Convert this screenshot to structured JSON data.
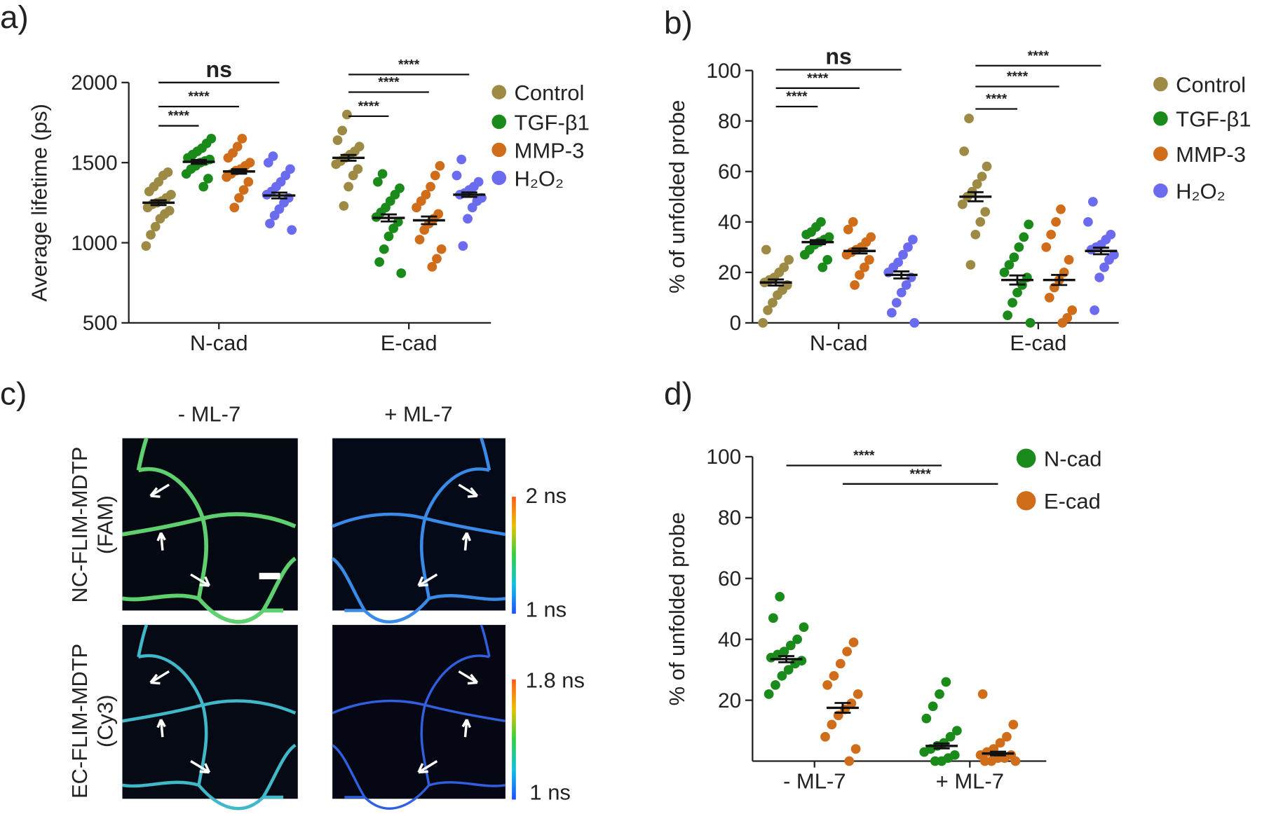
{
  "chart_data": [
    {
      "type": "strip",
      "panel_label": "a)",
      "ylabel": "Average lifetime (ps)",
      "categories": [
        "N-cad",
        "E-cad"
      ],
      "ylim": [
        500,
        2000
      ],
      "yticks": [
        500,
        1000,
        1500,
        2000
      ],
      "series": [
        {
          "name": "Control",
          "color": "#9c8a45",
          "values": [
            [
              980,
              1050,
              1100,
              1150,
              1180,
              1200,
              1220,
              1240,
              1250,
              1260,
              1280,
              1300,
              1320,
              1350,
              1380,
              1420,
              1440
            ],
            [
              1230,
              1350,
              1420,
              1460,
              1490,
              1510,
              1530,
              1550,
              1570,
              1600,
              1640,
              1700,
              1800
            ]
          ],
          "mean": [
            1250,
            1530
          ],
          "sem": [
            15,
            18
          ]
        },
        {
          "name": "TGF-β1",
          "color": "#1a8a1a",
          "values": [
            [
              1350,
              1400,
              1430,
              1460,
              1480,
              1500,
              1510,
              1520,
              1530,
              1550,
              1570,
              1590,
              1620,
              1650
            ],
            [
              810,
              880,
              960,
              1040,
              1090,
              1130,
              1160,
              1190,
              1220,
              1260,
              1300,
              1340,
              1380,
              1430
            ]
          ],
          "mean": [
            1505,
            1155
          ],
          "sem": [
            12,
            22
          ]
        },
        {
          "name": "MMP-3",
          "color": "#d06d1a",
          "values": [
            [
              1220,
              1280,
              1330,
              1380,
              1410,
              1430,
              1450,
              1460,
              1480,
              1500,
              1530,
              1560,
              1600,
              1650
            ],
            [
              850,
              900,
              960,
              1020,
              1080,
              1120,
              1150,
              1180,
              1220,
              1260,
              1300,
              1350,
              1420,
              1480
            ]
          ],
          "mean": [
            1445,
            1140
          ],
          "sem": [
            14,
            24
          ]
        },
        {
          "name": "H₂O₂",
          "color": "#6b6bf0",
          "values": [
            [
              1080,
              1120,
              1170,
              1210,
              1250,
              1280,
              1300,
              1320,
              1350,
              1380,
              1420,
              1460,
              1500,
              1540
            ],
            [
              980,
              1150,
              1220,
              1260,
              1280,
              1300,
              1310,
              1330,
              1350,
              1380,
              1420,
              1520
            ]
          ],
          "mean": [
            1295,
            1300
          ],
          "sem": [
            18,
            14
          ]
        }
      ],
      "significance": [
        {
          "label": "****",
          "from": [
            0,
            0
          ],
          "to": [
            0,
            1
          ]
        },
        {
          "label": "****",
          "from": [
            0,
            0
          ],
          "to": [
            0,
            2
          ]
        },
        {
          "label": "ns",
          "from": [
            0,
            0
          ],
          "to": [
            0,
            3
          ]
        },
        {
          "label": "****",
          "from": [
            1,
            0
          ],
          "to": [
            1,
            1
          ]
        },
        {
          "label": "****",
          "from": [
            1,
            0
          ],
          "to": [
            1,
            2
          ]
        },
        {
          "label": "****",
          "from": [
            1,
            0
          ],
          "to": [
            1,
            3
          ]
        }
      ]
    },
    {
      "type": "strip",
      "panel_label": "b)",
      "ylabel": "% of unfolded probe",
      "categories": [
        "N-cad",
        "E-cad"
      ],
      "ylim": [
        0,
        100
      ],
      "yticks": [
        0,
        20,
        40,
        60,
        80,
        100
      ],
      "series": [
        {
          "name": "Control",
          "color": "#9c8a45",
          "values": [
            [
              0,
              5,
              8,
              11,
              13,
              15,
              16,
              17,
              18,
              20,
              22,
              25,
              29
            ],
            [
              23,
              35,
              40,
              44,
              47,
              50,
              52,
              55,
              58,
              62,
              68,
              81
            ]
          ],
          "mean": [
            16,
            50
          ],
          "sem": [
            1.2,
            1.8
          ]
        },
        {
          "name": "TGF-β1",
          "color": "#1a8a1a",
          "values": [
            [
              22,
              25,
              27,
              29,
              31,
              32,
              33,
              34,
              35,
              36,
              38,
              40
            ],
            [
              0,
              3,
              8,
              12,
              15,
              18,
              20,
              23,
              26,
              30,
              34,
              39
            ]
          ],
          "mean": [
            32,
            17
          ],
          "sem": [
            0.8,
            1.8
          ]
        },
        {
          "name": "MMP-3",
          "color": "#d06d1a",
          "values": [
            [
              15,
              19,
              22,
              25,
              27,
              28,
              29,
              30,
              32,
              34,
              37,
              40
            ],
            [
              0,
              2,
              5,
              10,
              14,
              17,
              20,
              25,
              30,
              35,
              40,
              45
            ]
          ],
          "mean": [
            28.5,
            17
          ],
          "sem": [
            1,
            2
          ]
        },
        {
          "name": "H₂O₂",
          "color": "#6b6bf0",
          "values": [
            [
              0,
              4,
              8,
              12,
              15,
              18,
              20,
              22,
              24,
              27,
              30,
              33
            ],
            [
              5,
              18,
              22,
              25,
              27,
              29,
              30,
              31,
              33,
              35,
              40,
              48
            ]
          ],
          "mean": [
            19,
            28.5
          ],
          "sem": [
            1.4,
            1.3
          ]
        }
      ],
      "significance": [
        {
          "label": "****",
          "from": [
            0,
            0
          ],
          "to": [
            0,
            1
          ]
        },
        {
          "label": "****",
          "from": [
            0,
            0
          ],
          "to": [
            0,
            2
          ]
        },
        {
          "label": "ns",
          "from": [
            0,
            0
          ],
          "to": [
            0,
            3
          ]
        },
        {
          "label": "****",
          "from": [
            1,
            0
          ],
          "to": [
            1,
            1
          ]
        },
        {
          "label": "****",
          "from": [
            1,
            0
          ],
          "to": [
            1,
            2
          ]
        },
        {
          "label": "****",
          "from": [
            1,
            0
          ],
          "to": [
            1,
            3
          ]
        }
      ]
    },
    {
      "type": "strip",
      "panel_label": "d)",
      "ylabel": "% of unfolded probe",
      "categories": [
        "- ML-7",
        "+ ML-7"
      ],
      "ylim": [
        0,
        100
      ],
      "yticks": [
        20,
        40,
        60,
        80,
        100
      ],
      "series": [
        {
          "name": "N-cad",
          "color": "#1a8a1a",
          "values": [
            [
              22,
              25,
              28,
              30,
              32,
              33,
              34,
              35,
              36,
              38,
              40,
              44,
              47,
              54
            ],
            [
              0,
              0,
              1,
              2,
              3,
              4,
              5,
              6,
              8,
              10,
              14,
              18,
              22,
              26
            ]
          ],
          "mean": [
            33.5,
            5
          ],
          "sem": [
            1,
            0.8
          ]
        },
        {
          "name": "E-cad",
          "color": "#d06d1a",
          "values": [
            [
              0,
              4,
              8,
              12,
              15,
              17,
              19,
              22,
              25,
              28,
              32,
              36,
              39
            ],
            [
              0,
              0,
              0,
              1,
              1,
              2,
              2,
              3,
              4,
              6,
              8,
              12,
              22
            ]
          ],
          "mean": [
            17.5,
            2.5
          ],
          "sem": [
            1.6,
            0.6
          ]
        }
      ],
      "significance": [
        {
          "label": "****",
          "from": [
            0,
            0
          ],
          "to": [
            1,
            0
          ]
        },
        {
          "label": "****",
          "from": [
            0,
            1
          ],
          "to": [
            1,
            1
          ]
        }
      ]
    }
  ],
  "panel_c": {
    "panel_label": "c)",
    "columns": [
      "- ML-7",
      "+ ML-7"
    ],
    "rows": [
      {
        "label": "NC-FLIM-MDTP",
        "probe": "(FAM)",
        "scale": [
          "2 ns",
          "1 ns"
        ]
      },
      {
        "label": "EC-FLIM-MDTP",
        "probe": "(Cy3)",
        "scale": [
          "1.8 ns",
          "1 ns"
        ]
      }
    ]
  }
}
